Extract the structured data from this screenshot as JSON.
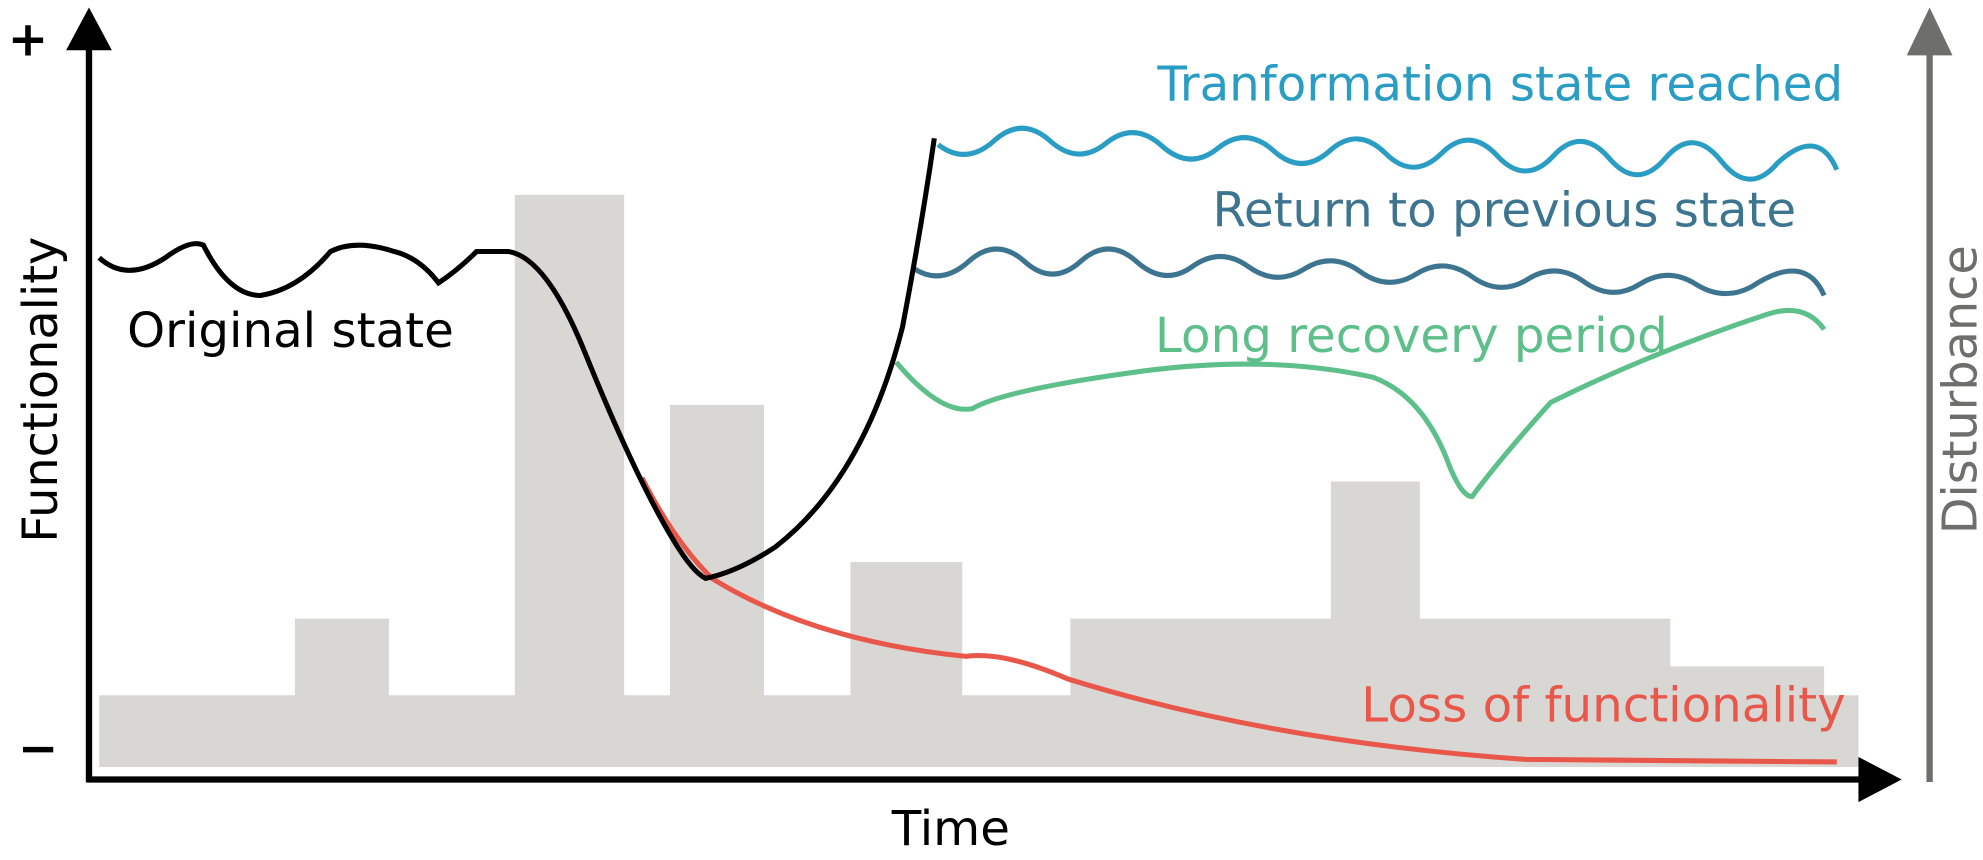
{
  "axes": {
    "y_plus": "+",
    "y_minus": "−",
    "y_label": "Functionality",
    "y2_label": "Disturbance",
    "x_label": "Time"
  },
  "curves": {
    "original": "Original state",
    "transformation": "Tranformation state reached",
    "return": "Return to previous state",
    "recovery": "Long recovery period",
    "loss": "Loss of functionality"
  }
}
